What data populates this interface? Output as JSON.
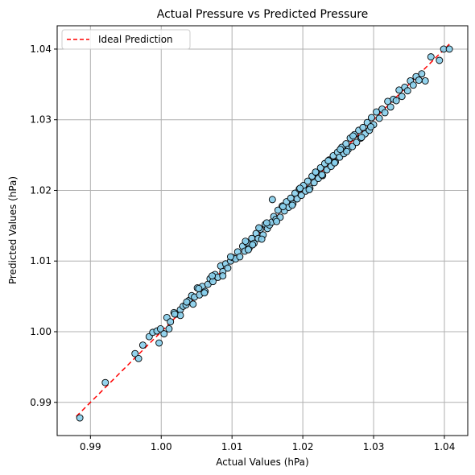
{
  "chart_data": {
    "type": "scatter",
    "title": "Actual Pressure vs Predicted Pressure",
    "xlabel": "Actual Values (hPa)",
    "ylabel": "Predicted Values (hPa)",
    "xlim": [
      0.9853,
      1.0433
    ],
    "ylim": [
      0.9853,
      1.0433
    ],
    "xticks": [
      0.99,
      1.0,
      1.01,
      1.02,
      1.03,
      1.04
    ],
    "xtick_labels": [
      "0.99",
      "1.00",
      "1.01",
      "1.02",
      "1.03",
      "1.04"
    ],
    "yticks": [
      0.99,
      1.0,
      1.01,
      1.02,
      1.03,
      1.04
    ],
    "ytick_labels": [
      "0.99",
      "1.00",
      "1.01",
      "1.02",
      "1.03",
      "1.04"
    ],
    "grid": true,
    "legend": {
      "placement": "top-left",
      "entries": [
        "Ideal Prediction"
      ]
    },
    "ideal_line": {
      "name": "Ideal Prediction",
      "x": [
        0.988,
        1.0407
      ],
      "y": [
        0.988,
        1.0407
      ],
      "color": "#ff0000",
      "style": "dashed"
    },
    "points_style": {
      "fill": "#87ceeb",
      "edge": "#000000"
    },
    "series": [
      {
        "x": [
          0.9885,
          0.9921,
          0.9963,
          0.9968,
          0.9974,
          0.9983,
          0.9988,
          0.9994,
          0.9997,
          0.9999,
          1.0004,
          1.0008,
          1.0013,
          1.0018,
          1.0022,
          1.0027,
          1.0031,
          1.0035,
          1.0039,
          1.0043,
          1.0047,
          1.0051,
          1.0054,
          1.0058,
          1.0062,
          1.0066,
          1.0069,
          1.0073,
          1.0076,
          1.008,
          1.0084,
          1.0087,
          1.0091,
          1.0094,
          1.0098,
          1.0101,
          1.0105,
          1.0108,
          1.0111,
          1.0115,
          1.0118,
          1.0121,
          1.0124,
          1.0128,
          1.0131,
          1.0134,
          1.0137,
          1.014,
          1.0144,
          1.0147,
          1.015,
          1.0153,
          1.0156,
          1.0159,
          1.0157,
          1.0162,
          1.0165,
          1.0168,
          1.0171,
          1.0174,
          1.0177,
          1.018,
          1.0183,
          1.0186,
          1.0189,
          1.0192,
          1.0195,
          1.0198,
          1.0201,
          1.0204,
          1.0207,
          1.021,
          1.0213,
          1.0216,
          1.0219,
          1.0222,
          1.0225,
          1.0228,
          1.0231,
          1.0234,
          1.0237,
          1.024,
          1.0243,
          1.0246,
          1.0249,
          1.0252,
          1.0255,
          1.0258,
          1.0261,
          1.0264,
          1.0267,
          1.027,
          1.0273,
          1.0276,
          1.0279,
          1.0282,
          1.0285,
          1.0288,
          1.0291,
          1.0294,
          1.0297,
          1.03,
          1.0304,
          1.0308,
          1.0312,
          1.0316,
          1.032,
          1.0324,
          1.0328,
          1.0332,
          1.0336,
          1.034,
          1.0344,
          1.0348,
          1.0352,
          1.0356,
          1.036,
          1.0364,
          1.0368,
          1.0373,
          1.0381,
          1.0393,
          1.0399,
          1.0407,
          1.0119,
          1.0123,
          1.0129,
          1.0138,
          1.0142,
          1.0149,
          1.0163,
          1.0172,
          1.0185,
          1.0196,
          1.0209,
          1.0218,
          1.0227,
          1.0236,
          1.0245,
          1.0253,
          1.0262,
          1.0271,
          1.0283,
          1.0296,
          1.0098,
          1.0087,
          1.0072,
          1.0061,
          1.0053,
          1.0045,
          1.0036,
          1.0027,
          1.0019,
          1.0011
        ],
        "y": [
          0.9878,
          0.9928,
          0.9969,
          0.9962,
          0.9981,
          0.9993,
          0.9999,
          1.0001,
          0.9984,
          1.0004,
          0.9997,
          1.002,
          1.0014,
          1.0027,
          1.0025,
          1.0031,
          1.0036,
          1.0038,
          1.0044,
          1.0051,
          1.0049,
          1.0062,
          1.0052,
          1.0064,
          1.0057,
          1.0067,
          1.0075,
          1.0071,
          1.0081,
          1.0077,
          1.0093,
          1.0085,
          1.0096,
          1.009,
          1.01,
          1.0105,
          1.0103,
          1.0113,
          1.0106,
          1.0121,
          1.0114,
          1.0126,
          1.0118,
          1.0132,
          1.0125,
          1.0139,
          1.0132,
          1.0145,
          1.0137,
          1.0152,
          1.0146,
          1.0151,
          1.0155,
          1.0163,
          1.0187,
          1.0159,
          1.0172,
          1.0162,
          1.0178,
          1.0171,
          1.0184,
          1.0176,
          1.0189,
          1.0181,
          1.0196,
          1.0188,
          1.0202,
          1.0193,
          1.0207,
          1.0199,
          1.0213,
          1.0203,
          1.022,
          1.0211,
          1.0225,
          1.0217,
          1.0232,
          1.0221,
          1.0238,
          1.0229,
          1.0243,
          1.0234,
          1.0249,
          1.024,
          1.0254,
          1.0247,
          1.0261,
          1.0252,
          1.0266,
          1.0258,
          1.0274,
          1.0262,
          1.0279,
          1.0268,
          1.0285,
          1.0274,
          1.0289,
          1.028,
          1.0296,
          1.0285,
          1.0303,
          1.0293,
          1.0311,
          1.0302,
          1.0315,
          1.031,
          1.0326,
          1.0318,
          1.0329,
          1.0327,
          1.0342,
          1.0333,
          1.0346,
          1.0341,
          1.0355,
          1.0349,
          1.0361,
          1.0356,
          1.0365,
          1.0355,
          1.0389,
          1.0384,
          1.04,
          1.04,
          1.0128,
          1.0116,
          1.0123,
          1.0147,
          1.0131,
          1.0154,
          1.0156,
          1.0177,
          1.0179,
          1.0203,
          1.0201,
          1.0226,
          1.0222,
          1.0242,
          1.0239,
          1.0258,
          1.0255,
          1.0277,
          1.0275,
          1.029,
          1.0106,
          1.0079,
          1.0079,
          1.0055,
          1.0061,
          1.0039,
          1.0042,
          1.0023,
          1.0025,
          1.0004
        ]
      }
    ]
  }
}
